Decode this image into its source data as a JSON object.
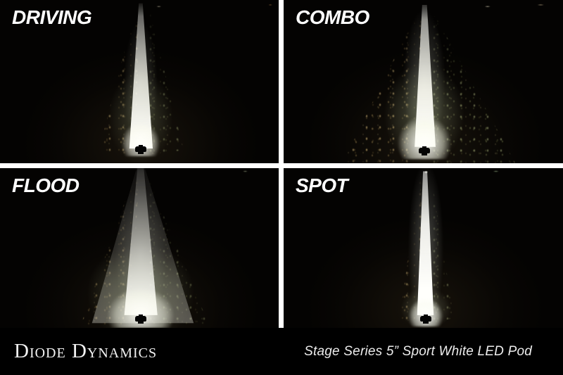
{
  "panels": [
    {
      "id": "driving",
      "label": "DRIVING"
    },
    {
      "id": "combo",
      "label": "COMBO"
    },
    {
      "id": "flood",
      "label": "FLOOD"
    },
    {
      "id": "spot",
      "label": "SPOT"
    }
  ],
  "footer": {
    "brand": "Diode Dynamics",
    "caption": "Stage Series 5” Sport White LED Pod"
  },
  "colors": {
    "divider": "#ffffff",
    "night_background": "#040302",
    "beam_white": "#fafaf2",
    "beam_green_tint": "#96aa78",
    "scatter_tan": "#a8905e",
    "label_text": "#ffffff",
    "footer_background": "#000000",
    "footer_text": "#f2f2f2"
  }
}
